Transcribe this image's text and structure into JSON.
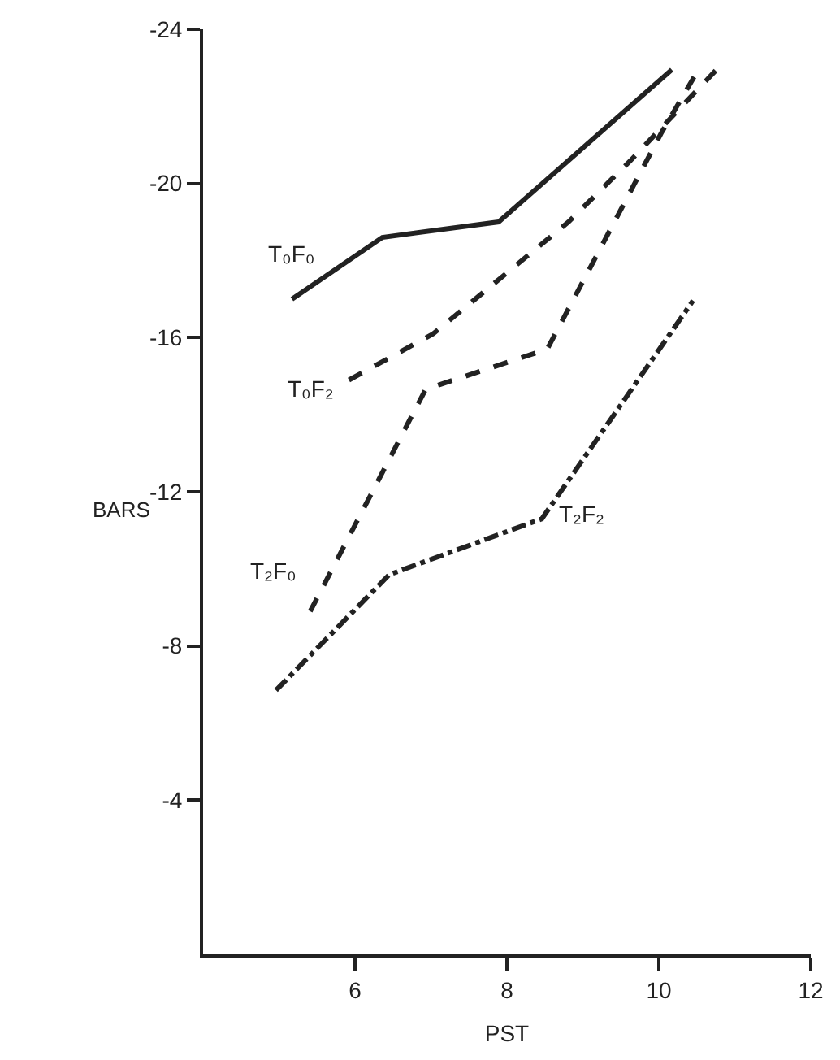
{
  "chart_data": {
    "type": "line",
    "xlabel": "PST",
    "ylabel": "BARS",
    "xlim": [
      4,
      12
    ],
    "xticks": [
      6,
      8,
      10,
      12
    ],
    "ylim": [
      0,
      -24
    ],
    "yticks": [
      -4,
      -8,
      -12,
      -16,
      -20,
      -24
    ],
    "grid": false,
    "legend": false,
    "marker": "none",
    "series": [
      {
        "name": "T₀F₀",
        "color": "#222222",
        "line_style": "solid",
        "x": [
          5.17,
          6.36,
          7.89,
          10.17
        ],
        "values": [
          -17.0,
          -18.6,
          -19.0,
          -22.95
        ]
      },
      {
        "name": "T₀F₂",
        "color": "#222222",
        "line_style": "dashed",
        "x": [
          5.92,
          7.03,
          8.81,
          9.63,
          10.83
        ],
        "values": [
          -14.9,
          -16.1,
          -19.0,
          -20.6,
          -23.1
        ]
      },
      {
        "name": "T₂F₀",
        "color": "#222222",
        "line_style": "dashed",
        "x": [
          5.41,
          6.93,
          8.53,
          10.03,
          10.52
        ],
        "values": [
          -8.9,
          -14.66,
          -15.7,
          -21.3,
          -22.95
        ]
      },
      {
        "name": "T₂F₂",
        "color": "#222222",
        "line_style": "dotted",
        "x": [
          4.96,
          6.45,
          8.46,
          10.45
        ],
        "values": [
          -6.85,
          -9.85,
          -11.3,
          -16.96
        ]
      }
    ]
  }
}
